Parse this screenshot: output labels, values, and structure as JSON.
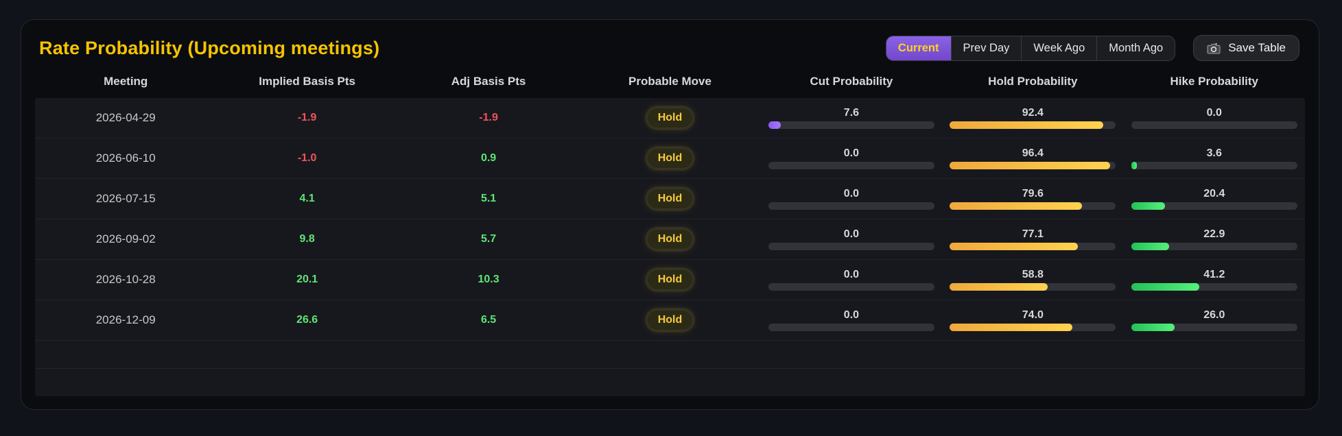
{
  "header": {
    "title": "Rate Probability (Upcoming meetings)",
    "tabs": [
      {
        "label": "Current",
        "active": true
      },
      {
        "label": "Prev Day",
        "active": false
      },
      {
        "label": "Week Ago",
        "active": false
      },
      {
        "label": "Month Ago",
        "active": false
      }
    ],
    "save_button": {
      "label": "Save Table",
      "icon": "camera-icon"
    }
  },
  "table": {
    "columns": [
      "Meeting",
      "Implied Basis Pts",
      "Adj Basis Pts",
      "Probable Move",
      "Cut Probability",
      "Hold Probability",
      "Hike Probability"
    ],
    "rows": [
      {
        "meeting": "2026-04-29",
        "implied": "-1.9",
        "adj": "-1.9",
        "move": "Hold",
        "cut": "7.6",
        "hold": "92.4",
        "hike": "0.0"
      },
      {
        "meeting": "2026-06-10",
        "implied": "-1.0",
        "adj": "0.9",
        "move": "Hold",
        "cut": "0.0",
        "hold": "96.4",
        "hike": "3.6"
      },
      {
        "meeting": "2026-07-15",
        "implied": "4.1",
        "adj": "5.1",
        "move": "Hold",
        "cut": "0.0",
        "hold": "79.6",
        "hike": "20.4"
      },
      {
        "meeting": "2026-09-02",
        "implied": "9.8",
        "adj": "5.7",
        "move": "Hold",
        "cut": "0.0",
        "hold": "77.1",
        "hike": "22.9"
      },
      {
        "meeting": "2026-10-28",
        "implied": "20.1",
        "adj": "10.3",
        "move": "Hold",
        "cut": "0.0",
        "hold": "58.8",
        "hike": "41.2"
      },
      {
        "meeting": "2026-12-09",
        "implied": "26.6",
        "adj": "6.5",
        "move": "Hold",
        "cut": "0.0",
        "hold": "74.0",
        "hike": "26.0"
      }
    ],
    "empty_rows": 2
  },
  "colors": {
    "title_accent": "#f5c400",
    "active_tab_bg": "#7e58dd",
    "active_tab_text": "#ffd21e",
    "negative_value": "#ef5360",
    "positive_value": "#5fe477",
    "badge_text": "#f8ca3c",
    "cut_bar": "#9466f5",
    "hold_bar": "#f7b945",
    "hike_bar": "#3fdd6b",
    "bar_track": "#313338",
    "row_background": "#17181d",
    "panel_background": "#0b0c10"
  }
}
